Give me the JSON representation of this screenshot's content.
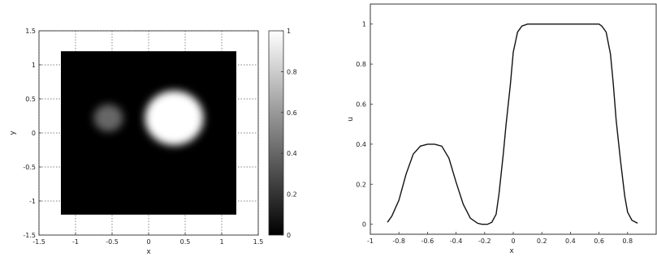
{
  "chart_data": [
    {
      "type": "heatmap",
      "title": "",
      "xlabel": "x",
      "ylabel": "y",
      "xlim": [
        -1.5,
        1.5
      ],
      "ylim": [
        -1.5,
        1.5
      ],
      "xticks": [
        "-1.5",
        "-1",
        "-0.5",
        "0",
        "0.5",
        "1",
        "1.5"
      ],
      "yticks": [
        "1.5",
        "1",
        "0.5",
        "0",
        "-0.5",
        "-1",
        "-1.5"
      ],
      "domain": {
        "xmin": -1.2,
        "xmax": 1.2,
        "ymin": -1.2,
        "ymax": 1.2
      },
      "blobs": [
        {
          "cx": -0.55,
          "cy": 0.22,
          "r": 0.2,
          "value": 0.4
        },
        {
          "cx": 0.35,
          "cy": 0.22,
          "r": 0.4,
          "value": 1.0
        }
      ],
      "background_value": 0,
      "grid": true,
      "colorbar": {
        "range": [
          0,
          1
        ],
        "ticks": [
          "1",
          "0.8",
          "0.6",
          "0.4",
          "0.2",
          "0"
        ],
        "colormap": "gray"
      }
    },
    {
      "type": "line",
      "title": "",
      "xlabel": "x",
      "ylabel": "u",
      "xlim": [
        -1,
        1
      ],
      "ylim": [
        -0.05,
        1.1
      ],
      "xticks": [
        "-1",
        "-0.8",
        "-0.6",
        "-0.4",
        "-0.2",
        "0",
        "0.2",
        "0.4",
        "0.6",
        "0.8"
      ],
      "yticks": [
        "1",
        "0.8",
        "0.6",
        "0.4",
        "0.2",
        "0"
      ],
      "grid": false,
      "series": [
        {
          "x": [
            -0.88,
            -0.85,
            -0.8,
            -0.75,
            -0.7,
            -0.65,
            -0.6,
            -0.55,
            -0.5,
            -0.45,
            -0.4,
            -0.35,
            -0.3,
            -0.25,
            -0.22,
            -0.18,
            -0.15,
            -0.12,
            -0.1,
            -0.07,
            -0.05,
            -0.02,
            0.0,
            0.03,
            0.06,
            0.1,
            0.2,
            0.3,
            0.4,
            0.5,
            0.6,
            0.62,
            0.65,
            0.68,
            0.7,
            0.72,
            0.75,
            0.78,
            0.8,
            0.83,
            0.87
          ],
          "y": [
            0.01,
            0.04,
            0.12,
            0.25,
            0.35,
            0.39,
            0.4,
            0.4,
            0.39,
            0.33,
            0.21,
            0.1,
            0.03,
            0.005,
            0.0,
            0.0,
            0.01,
            0.05,
            0.15,
            0.35,
            0.5,
            0.7,
            0.86,
            0.96,
            0.99,
            1.0,
            1.0,
            1.0,
            1.0,
            1.0,
            1.0,
            0.99,
            0.96,
            0.85,
            0.7,
            0.52,
            0.32,
            0.14,
            0.06,
            0.02,
            0.005
          ]
        }
      ]
    }
  ]
}
